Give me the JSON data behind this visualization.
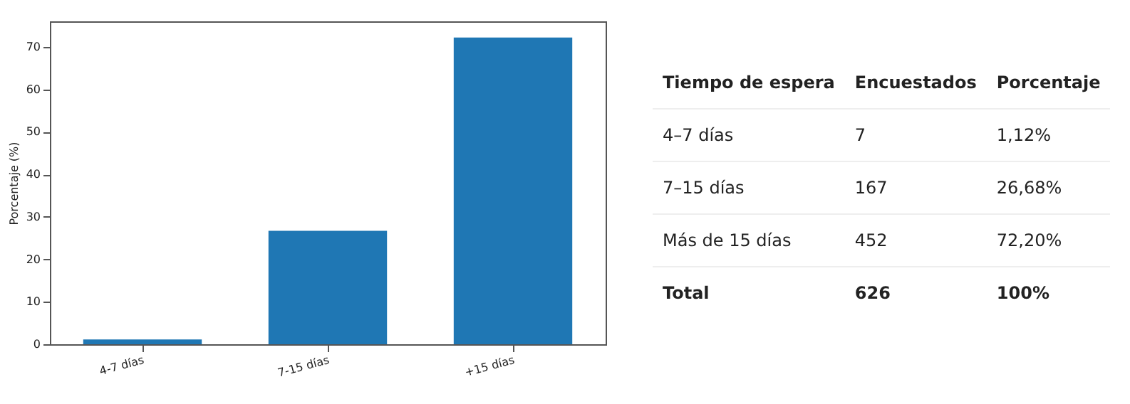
{
  "chart_data": [
    {
      "type": "bar",
      "ylabel": "Porcentaje (%)",
      "categories": [
        "4-7 días",
        "7-15 días",
        "+15 días"
      ],
      "values": [
        1.12,
        26.68,
        72.2
      ],
      "color": "#1f77b4",
      "ylim": [
        0,
        76
      ],
      "yticks": [
        0,
        10,
        20,
        30,
        40,
        50,
        60,
        70
      ],
      "grid": false,
      "legend": false
    },
    {
      "type": "other",
      "annotations": [
        "Tiempo de espera",
        "Encuestados",
        "Porcentaje",
        "4–7 días",
        "7",
        "1,12%",
        "7–15 días",
        "167",
        "26,68%",
        "Más de 15 días",
        "452",
        "72,20%",
        "Total",
        "626",
        "100%"
      ]
    }
  ]
}
